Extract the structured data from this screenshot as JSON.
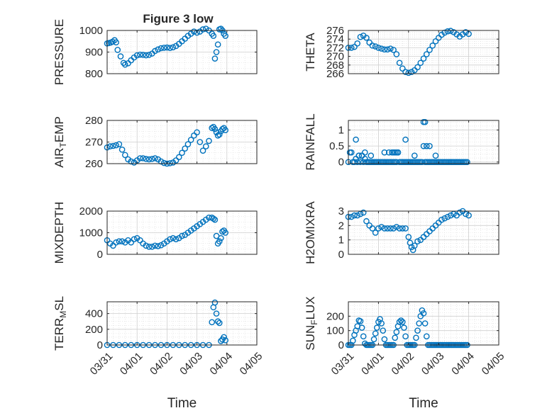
{
  "figure": {
    "title": "Figure 3 low",
    "background": "#ffffff"
  },
  "colors": {
    "marker": "#0072BD",
    "axis": "#262626",
    "grid": "#d9d9d9"
  },
  "chart_data": [
    {
      "type": "scatter",
      "ylabel_main": "PRESSURE",
      "ylabel_sub": "",
      "ylabel_tail": "",
      "xlabel": "",
      "xtick_labels": [],
      "ylim": [
        800,
        1000
      ],
      "yticks": [
        800,
        900,
        1000
      ],
      "xlim": [
        0,
        5
      ],
      "grid": true,
      "x": [
        0.0,
        0.06,
        0.12,
        0.18,
        0.25,
        0.3,
        0.35,
        0.45,
        0.55,
        0.6,
        0.7,
        0.8,
        0.9,
        1.0,
        1.1,
        1.2,
        1.3,
        1.4,
        1.5,
        1.6,
        1.7,
        1.8,
        1.9,
        2.0,
        2.1,
        2.2,
        2.3,
        2.4,
        2.5,
        2.6,
        2.7,
        2.8,
        2.9,
        3.0,
        3.1,
        3.2,
        3.3,
        3.4,
        3.5,
        3.55,
        3.6,
        3.65,
        3.7,
        3.75,
        3.8,
        3.85,
        3.9,
        3.95
      ],
      "y": [
        940,
        942,
        944,
        948,
        955,
        945,
        910,
        880,
        850,
        842,
        848,
        862,
        875,
        885,
        888,
        887,
        885,
        887,
        893,
        905,
        912,
        918,
        920,
        921,
        919,
        922,
        928,
        938,
        950,
        962,
        975,
        985,
        995,
        990,
        995,
        1005,
        1008,
        1000,
        985,
        975,
        870,
        900,
        935,
        1005,
        1008,
        1000,
        985,
        975
      ]
    },
    {
      "type": "scatter",
      "ylabel_main": "THETA",
      "ylabel_sub": "",
      "ylabel_tail": "",
      "xlabel": "",
      "xtick_labels": [],
      "ylim": [
        266,
        276
      ],
      "yticks": [
        266,
        268,
        270,
        272,
        274,
        276
      ],
      "xlim": [
        0,
        5
      ],
      "grid": true,
      "x": [
        0.0,
        0.1,
        0.2,
        0.3,
        0.4,
        0.5,
        0.6,
        0.7,
        0.8,
        0.9,
        1.0,
        1.1,
        1.2,
        1.3,
        1.4,
        1.5,
        1.6,
        1.7,
        1.8,
        1.9,
        2.0,
        2.1,
        2.2,
        2.3,
        2.4,
        2.5,
        2.6,
        2.7,
        2.8,
        2.9,
        3.0,
        3.1,
        3.2,
        3.3,
        3.4,
        3.5,
        3.6,
        3.7,
        3.8,
        3.9,
        4.0
      ],
      "y": [
        272,
        272,
        272.2,
        273,
        274.5,
        274.8,
        274.3,
        273.2,
        272.5,
        272.3,
        272,
        271.8,
        271.6,
        271.6,
        271.8,
        271.5,
        270.5,
        268.5,
        267.2,
        266.4,
        266.2,
        266.4,
        266.8,
        267.5,
        268.5,
        269.5,
        270.5,
        271.5,
        272.5,
        273.5,
        274.3,
        275,
        275.5,
        275.8,
        275.9,
        275.6,
        275.1,
        274.6,
        275.1,
        275.6,
        275.2
      ]
    },
    {
      "type": "scatter",
      "ylabel_main": "AIR",
      "ylabel_sub": "T",
      "ylabel_tail": "EMP",
      "xlabel": "",
      "xtick_labels": [],
      "ylim": [
        260,
        280
      ],
      "yticks": [
        260,
        270,
        280
      ],
      "xlim": [
        0,
        5
      ],
      "grid": true,
      "x": [
        0.0,
        0.1,
        0.2,
        0.3,
        0.4,
        0.5,
        0.6,
        0.7,
        0.8,
        0.9,
        1.0,
        1.1,
        1.2,
        1.3,
        1.4,
        1.5,
        1.6,
        1.7,
        1.8,
        1.9,
        2.0,
        2.1,
        2.2,
        2.3,
        2.4,
        2.5,
        2.6,
        2.7,
        2.8,
        2.9,
        3.0,
        3.1,
        3.2,
        3.3,
        3.4,
        3.5,
        3.55,
        3.6,
        3.65,
        3.7,
        3.75,
        3.8,
        3.85,
        3.9,
        3.95
      ],
      "y": [
        267.5,
        268,
        268.2,
        268.5,
        269,
        266.5,
        264,
        262,
        261,
        260.5,
        261.5,
        262.5,
        262.5,
        262.2,
        262,
        262.2,
        262.5,
        262,
        261,
        260.3,
        260,
        260.2,
        260.5,
        261.5,
        263,
        265,
        267,
        269,
        271,
        273,
        274.5,
        270,
        266,
        268,
        270.5,
        276.5,
        277,
        276,
        274.5,
        273,
        273.5,
        275,
        276,
        276.5,
        275.5
      ]
    },
    {
      "type": "scatter",
      "ylabel_main": "RAINFALL",
      "ylabel_sub": "",
      "ylabel_tail": "",
      "xlabel": "",
      "xtick_labels": [],
      "ylim": [
        -0.05,
        1.3
      ],
      "yticks": [
        0,
        0.5,
        1
      ],
      "ytick_labels": [
        "0",
        "0.5",
        "1"
      ],
      "xlim": [
        0,
        5
      ],
      "grid": true,
      "x": [
        0.0,
        0.05,
        0.1,
        0.15,
        0.2,
        0.25,
        0.3,
        0.35,
        0.4,
        0.45,
        0.5,
        0.55,
        0.6,
        0.65,
        0.7,
        0.75,
        0.8,
        0.85,
        0.9,
        0.95,
        1.0,
        1.05,
        1.1,
        1.15,
        1.2,
        1.25,
        1.3,
        1.35,
        1.4,
        1.45,
        1.5,
        1.55,
        1.6,
        1.65,
        1.7,
        1.75,
        1.8,
        1.85,
        1.9,
        1.95,
        2.0,
        2.05,
        2.1,
        2.15,
        2.2,
        2.25,
        2.3,
        2.35,
        2.4,
        2.45,
        2.5,
        2.55,
        2.6,
        2.65,
        2.7,
        2.75,
        2.8,
        2.85,
        2.9,
        2.95,
        3.0,
        3.05,
        3.1,
        3.15,
        3.2,
        3.25,
        3.3,
        3.35,
        3.4,
        3.45,
        3.5,
        3.55,
        3.6,
        3.65,
        3.7,
        3.75,
        3.8,
        3.85,
        3.9,
        3.95,
        0.25,
        0.35,
        0.45,
        0.55,
        0.75,
        1.2,
        1.5,
        1.55,
        1.9,
        2.2,
        2.5,
        2.55,
        2.6,
        2.7,
        2.9,
        1.35,
        1.45,
        1.6,
        1.65
      ],
      "y": [
        0,
        0.3,
        0.3,
        0,
        0,
        0.7,
        0,
        0.2,
        0,
        0.2,
        0,
        0.1,
        0,
        0,
        0,
        0,
        0,
        0,
        0,
        0,
        0,
        0,
        0,
        0,
        0,
        0,
        0,
        0,
        0,
        0,
        0,
        0,
        0,
        0.3,
        0,
        0,
        0,
        0,
        0,
        0,
        0,
        0,
        0,
        0,
        0,
        0,
        0,
        0,
        0,
        0,
        0.5,
        0,
        0,
        0,
        0,
        0,
        0,
        0,
        0,
        0,
        0,
        0,
        0,
        0,
        0,
        0,
        0,
        0,
        0,
        0,
        0,
        0,
        0,
        0,
        0,
        0,
        0,
        0,
        0,
        0,
        0.1,
        0.2,
        0.2,
        0.3,
        0.2,
        0.3,
        0.3,
        0.3,
        0.7,
        0.2,
        1.25,
        1.25,
        0.5,
        0.5,
        0.2,
        0.3,
        0.3,
        0.3,
        0.3
      ]
    },
    {
      "type": "scatter",
      "ylabel_main": "MIXDEPTH",
      "ylabel_sub": "",
      "ylabel_tail": "",
      "xlabel": "",
      "xtick_labels": [],
      "ylim": [
        0,
        2000
      ],
      "yticks": [
        0,
        1000,
        2000
      ],
      "xlim": [
        0,
        5
      ],
      "grid": true,
      "x": [
        0.0,
        0.1,
        0.2,
        0.3,
        0.4,
        0.5,
        0.6,
        0.7,
        0.8,
        0.9,
        1.0,
        1.1,
        1.2,
        1.3,
        1.4,
        1.5,
        1.6,
        1.7,
        1.8,
        1.9,
        2.0,
        2.1,
        2.2,
        2.3,
        2.4,
        2.5,
        2.6,
        2.7,
        2.8,
        2.9,
        3.0,
        3.1,
        3.2,
        3.3,
        3.4,
        3.5,
        3.55,
        3.6,
        3.65,
        3.7,
        3.75,
        3.8,
        3.85,
        3.9,
        3.95
      ],
      "y": [
        650,
        500,
        400,
        550,
        600,
        600,
        550,
        650,
        550,
        700,
        750,
        650,
        500,
        400,
        350,
        350,
        400,
        380,
        420,
        500,
        600,
        700,
        750,
        700,
        750,
        850,
        900,
        1000,
        1100,
        1200,
        1300,
        1400,
        1500,
        1600,
        1700,
        1700,
        1650,
        1600,
        850,
        500,
        600,
        750,
        1050,
        1100,
        1000
      ]
    },
    {
      "type": "scatter",
      "ylabel_main": "H2OMIXRA",
      "ylabel_sub": "",
      "ylabel_tail": "",
      "xlabel": "",
      "xtick_labels": [],
      "ylim": [
        0,
        3
      ],
      "yticks": [
        0,
        1,
        2,
        3
      ],
      "xlim": [
        0,
        5
      ],
      "grid": true,
      "x": [
        0.0,
        0.1,
        0.2,
        0.3,
        0.4,
        0.5,
        0.6,
        0.7,
        0.8,
        0.9,
        1.0,
        1.1,
        1.2,
        1.3,
        1.4,
        1.5,
        1.6,
        1.7,
        1.8,
        1.9,
        2.0,
        2.05,
        2.1,
        2.15,
        2.2,
        2.3,
        2.4,
        2.5,
        2.6,
        2.7,
        2.8,
        2.9,
        3.0,
        3.1,
        3.2,
        3.3,
        3.4,
        3.5,
        3.6,
        3.7,
        3.8,
        3.9,
        4.0
      ],
      "y": [
        2.6,
        2.6,
        2.7,
        2.7,
        2.8,
        2.9,
        2.3,
        2.0,
        1.8,
        1.5,
        1.8,
        1.9,
        1.8,
        1.8,
        1.8,
        1.8,
        1.9,
        1.8,
        1.8,
        1.8,
        1.2,
        0.8,
        0.5,
        0.3,
        0.6,
        0.9,
        1.0,
        1.2,
        1.4,
        1.6,
        1.8,
        2.0,
        2.2,
        2.4,
        2.5,
        2.6,
        2.7,
        2.8,
        2.7,
        2.9,
        3.0,
        2.8,
        2.7
      ]
    },
    {
      "type": "scatter",
      "ylabel_main": "TERR",
      "ylabel_sub": "M",
      "ylabel_tail": "SL",
      "xlabel": "Time",
      "xtick_labels": [
        "03/31",
        "04/01",
        "04/02",
        "04/03",
        "04/04",
        "04/05"
      ],
      "ylim": [
        0,
        550
      ],
      "yticks": [
        0,
        200,
        400
      ],
      "xlim": [
        0,
        5
      ],
      "grid": true,
      "x": [
        0.0,
        0.2,
        0.4,
        0.6,
        0.8,
        1.0,
        1.2,
        1.4,
        1.6,
        1.8,
        2.0,
        2.2,
        2.4,
        2.6,
        2.8,
        3.0,
        3.2,
        3.4,
        3.5,
        3.55,
        3.6,
        3.65,
        3.7,
        3.75,
        3.8,
        3.85,
        3.9,
        3.95
      ],
      "y": [
        0,
        0,
        0,
        0,
        0,
        0,
        0,
        0,
        0,
        0,
        0,
        0,
        0,
        0,
        0,
        0,
        0,
        0,
        290,
        480,
        540,
        400,
        300,
        280,
        50,
        70,
        100,
        60
      ]
    },
    {
      "type": "scatter",
      "ylabel_main": "SUN",
      "ylabel_sub": "F",
      "ylabel_tail": "LUX",
      "xlabel": "Time",
      "xtick_labels": [
        "03/31",
        "04/01",
        "04/02",
        "04/03",
        "04/04",
        "04/05"
      ],
      "ylim": [
        0,
        300
      ],
      "yticks": [
        0,
        100,
        200
      ],
      "xlim": [
        0,
        5
      ],
      "grid": true,
      "x": [
        0.0,
        0.05,
        0.1,
        0.15,
        0.2,
        0.25,
        0.3,
        0.35,
        0.4,
        0.45,
        0.5,
        0.55,
        0.6,
        0.65,
        0.7,
        0.75,
        0.8,
        0.85,
        0.9,
        0.95,
        1.0,
        1.05,
        1.1,
        1.15,
        1.2,
        1.25,
        1.3,
        1.35,
        1.4,
        1.45,
        1.5,
        1.55,
        1.6,
        1.65,
        1.7,
        1.75,
        1.8,
        1.85,
        1.9,
        1.95,
        2.0,
        2.05,
        2.1,
        2.15,
        2.2,
        2.25,
        2.3,
        2.35,
        2.4,
        2.45,
        2.5,
        2.55,
        2.6,
        2.65,
        2.7,
        2.75,
        2.8,
        2.85,
        2.9,
        2.95,
        3.0,
        3.05,
        3.1,
        3.15,
        3.2,
        3.25,
        3.3,
        3.35,
        3.4,
        3.45,
        3.5,
        3.55,
        3.6,
        3.65,
        3.7,
        3.75,
        3.8,
        3.85,
        3.9,
        3.95
      ],
      "y": [
        0,
        0,
        0,
        30,
        70,
        100,
        130,
        170,
        165,
        120,
        60,
        10,
        0,
        0,
        0,
        0,
        0,
        40,
        80,
        120,
        160,
        180,
        150,
        100,
        40,
        0,
        0,
        0,
        0,
        0,
        0,
        50,
        90,
        130,
        160,
        170,
        160,
        120,
        60,
        0,
        0,
        0,
        0,
        0,
        0,
        50,
        100,
        150,
        200,
        240,
        220,
        150,
        60,
        0,
        0,
        0,
        0,
        0,
        0,
        0,
        0,
        0,
        0,
        0,
        0,
        0,
        0,
        0,
        0,
        0,
        0,
        0,
        0,
        0,
        0,
        0,
        0,
        0,
        0,
        0
      ]
    }
  ]
}
